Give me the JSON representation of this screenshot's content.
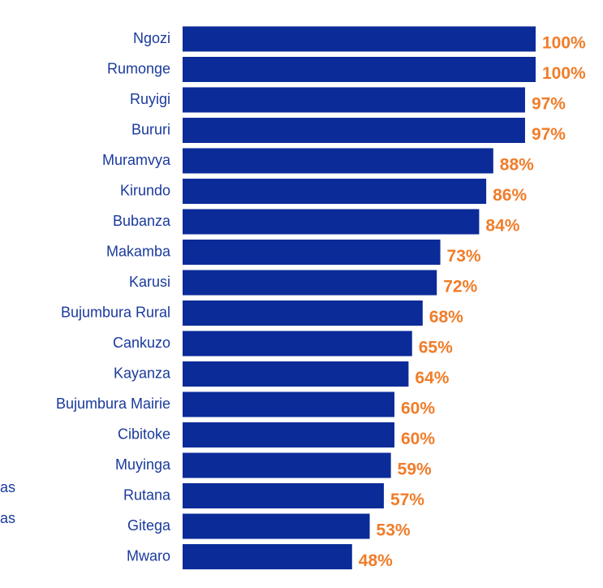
{
  "chart_data": {
    "type": "bar",
    "orientation": "horizontal",
    "categories": [
      "Ngozi",
      "Rumonge",
      "Ruyigi",
      "Bururi",
      "Muramvya",
      "Kirundo",
      "Bubanza",
      "Makamba",
      "Karusi",
      "Bujumbura Rural",
      "Cankuzo",
      "Kayanza",
      "Bujumbura Mairie",
      "Cibitoke",
      "Muyinga",
      "Rutana",
      "Gitega",
      "Mwaro"
    ],
    "values": [
      100,
      100,
      97,
      97,
      88,
      86,
      84,
      73,
      72,
      68,
      65,
      64,
      60,
      60,
      59,
      57,
      53,
      48
    ],
    "value_labels": [
      "100%",
      "100%",
      "97%",
      "97%",
      "88%",
      "86%",
      "84%",
      "73%",
      "72%",
      "68%",
      "65%",
      "64%",
      "60%",
      "60%",
      "59%",
      "57%",
      "53%",
      "48%"
    ],
    "color": "#0b2b98",
    "xlim": [
      0,
      100
    ],
    "annotations": [
      "as",
      "as"
    ]
  }
}
